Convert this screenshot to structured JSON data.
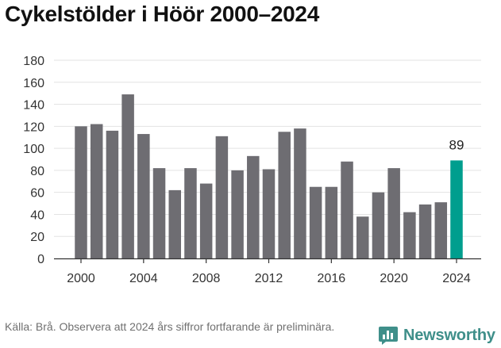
{
  "title": "Cykelstölder i Höör 2000–2024",
  "source": "Källa: Brå. Observera att 2024 års siffror fortfarande är preliminära.",
  "brand": {
    "name": "Newsworthy",
    "icon": "newsworthy-logo-icon",
    "color": "#3f8f8a"
  },
  "chart_data": {
    "type": "bar",
    "title": "Cykelstölder i Höör 2000–2024",
    "xlabel": "",
    "ylabel": "",
    "x": [
      2000,
      2001,
      2002,
      2003,
      2004,
      2005,
      2006,
      2007,
      2008,
      2009,
      2010,
      2011,
      2012,
      2013,
      2014,
      2015,
      2016,
      2017,
      2018,
      2019,
      2020,
      2021,
      2022,
      2023,
      2024
    ],
    "values": [
      120,
      122,
      116,
      149,
      113,
      82,
      62,
      82,
      68,
      111,
      80,
      93,
      81,
      115,
      118,
      65,
      65,
      88,
      38,
      60,
      82,
      42,
      49,
      51,
      89
    ],
    "ylim": [
      0,
      180
    ],
    "yticks": [
      "0",
      "20",
      "40",
      "60",
      "80",
      "100",
      "120",
      "140",
      "160",
      "180"
    ],
    "xticks": [
      "2000",
      "2004",
      "2008",
      "2012",
      "2016",
      "2020",
      "2024"
    ],
    "bar_color": "#6e6d72",
    "highlight_color": "#009e8e",
    "highlight_index": 24,
    "highlight_label": "89",
    "grid": true
  }
}
